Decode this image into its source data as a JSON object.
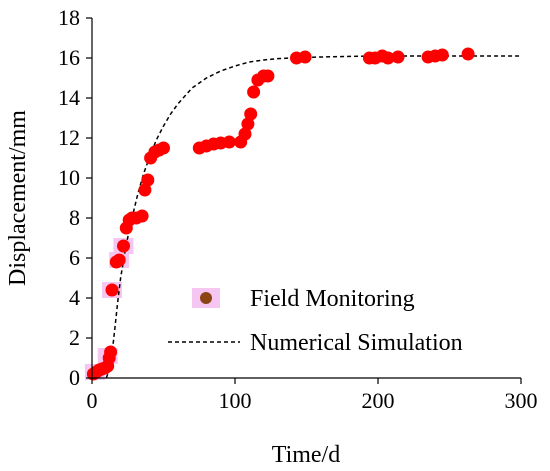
{
  "chart_data": {
    "type": "scatter",
    "xlabel": "Time/d",
    "ylabel": "Displacement/mm",
    "xlim": [
      0,
      300
    ],
    "ylim": [
      0,
      18
    ],
    "xticks": [
      0,
      100,
      200,
      300
    ],
    "yticks": [
      0,
      2,
      4,
      6,
      8,
      10,
      12,
      14,
      16,
      18
    ],
    "grid": false,
    "legend_position": "center-right",
    "series": [
      {
        "name": "Field Monitoring",
        "kind": "scatter",
        "color": "#ff0000",
        "points": [
          [
            1,
            0.2
          ],
          [
            3,
            0.3
          ],
          [
            5,
            0.4
          ],
          [
            7,
            0.45
          ],
          [
            9,
            0.5
          ],
          [
            11,
            0.6
          ],
          [
            12,
            1.0
          ],
          [
            13,
            1.3
          ],
          [
            14,
            4.4
          ],
          [
            17,
            5.8
          ],
          [
            19,
            5.9
          ],
          [
            22,
            6.6
          ],
          [
            24,
            7.5
          ],
          [
            26,
            7.9
          ],
          [
            28,
            8.0
          ],
          [
            31,
            8.0
          ],
          [
            35,
            8.1
          ],
          [
            37,
            9.4
          ],
          [
            39,
            9.9
          ],
          [
            41,
            11.0
          ],
          [
            44,
            11.3
          ],
          [
            47,
            11.4
          ],
          [
            50,
            11.5
          ],
          [
            75,
            11.5
          ],
          [
            80,
            11.6
          ],
          [
            85,
            11.7
          ],
          [
            90,
            11.75
          ],
          [
            96,
            11.8
          ],
          [
            104,
            11.8
          ],
          [
            107,
            12.2
          ],
          [
            109,
            12.7
          ],
          [
            111,
            13.2
          ],
          [
            113,
            14.3
          ],
          [
            116,
            14.9
          ],
          [
            120,
            15.1
          ],
          [
            123,
            15.1
          ],
          [
            143,
            16.0
          ],
          [
            149,
            16.05
          ],
          [
            194,
            16.0
          ],
          [
            198,
            16.0
          ],
          [
            203,
            16.1
          ],
          [
            207,
            16.0
          ],
          [
            214,
            16.05
          ],
          [
            235,
            16.05
          ],
          [
            240,
            16.1
          ],
          [
            245,
            16.15
          ],
          [
            263,
            16.2
          ]
        ]
      },
      {
        "name": "Numerical Simulation",
        "kind": "line",
        "style": "dashed",
        "color": "#000000",
        "points": [
          [
            10,
            0
          ],
          [
            12,
            0.4
          ],
          [
            14,
            1.2
          ],
          [
            16,
            2.5
          ],
          [
            18,
            3.8
          ],
          [
            20,
            5.0
          ],
          [
            24,
            6.7
          ],
          [
            28,
            8.0
          ],
          [
            32,
            9.2
          ],
          [
            36,
            10.2
          ],
          [
            40,
            11.0
          ],
          [
            45,
            11.9
          ],
          [
            50,
            12.6
          ],
          [
            55,
            13.2
          ],
          [
            60,
            13.7
          ],
          [
            70,
            14.5
          ],
          [
            80,
            15.0
          ],
          [
            90,
            15.35
          ],
          [
            100,
            15.6
          ],
          [
            110,
            15.8
          ],
          [
            120,
            15.9
          ],
          [
            130,
            15.97
          ],
          [
            140,
            16.0
          ],
          [
            160,
            16.05
          ],
          [
            180,
            16.08
          ],
          [
            200,
            16.1
          ],
          [
            240,
            16.1
          ],
          [
            300,
            16.1
          ]
        ]
      }
    ]
  }
}
